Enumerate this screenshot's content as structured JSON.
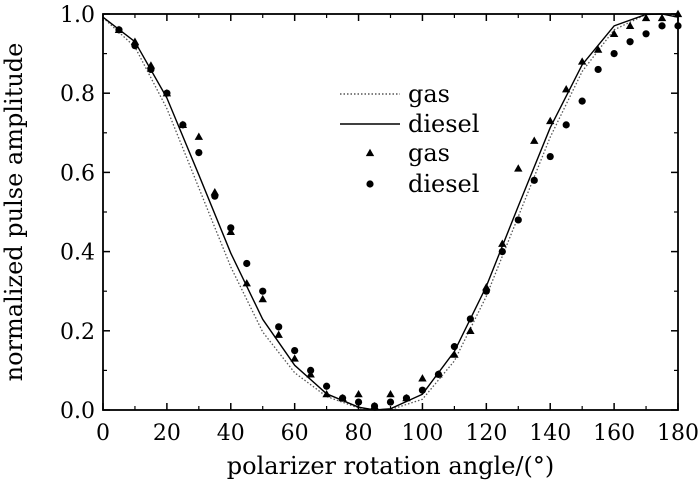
{
  "chart_data": {
    "type": "scatter",
    "title": "",
    "xlabel": "polarizer rotation angle/(°)",
    "ylabel": "normalized pulse amplitude",
    "xlim": [
      0,
      180
    ],
    "ylim": [
      0.0,
      1.0
    ],
    "x_ticks": [
      0,
      20,
      40,
      60,
      80,
      100,
      120,
      140,
      160,
      180
    ],
    "x_tick_labels": [
      "0",
      "20",
      "40",
      "60",
      "80",
      "100",
      "120",
      "140",
      "160",
      "180"
    ],
    "y_ticks": [
      0.0,
      0.2,
      0.4,
      0.6,
      0.8,
      1.0
    ],
    "y_tick_labels": [
      "0.0",
      "0.2",
      "0.4",
      "0.6",
      "0.8",
      "1.0"
    ],
    "grid": false,
    "legend_position": "upper-center",
    "series": [
      {
        "name": "gas",
        "kind": "line",
        "style": "dotted",
        "color": "#555555",
        "x": [
          0,
          10,
          20,
          30,
          40,
          50,
          60,
          70,
          80,
          87,
          90,
          100,
          110,
          120,
          130,
          140,
          150,
          160,
          170,
          177,
          180
        ],
        "y": [
          0.991,
          0.917,
          0.761,
          0.561,
          0.361,
          0.197,
          0.094,
          0.034,
          0.005,
          0.0,
          0.001,
          0.027,
          0.124,
          0.287,
          0.489,
          0.689,
          0.855,
          0.96,
          0.999,
          1.0,
          0.995
        ]
      },
      {
        "name": "diesel",
        "kind": "line",
        "style": "solid",
        "color": "#000000",
        "x": [
          0,
          10,
          20,
          30,
          40,
          50,
          60,
          70,
          80,
          85,
          90,
          100,
          110,
          120,
          130,
          140,
          150,
          160,
          170,
          175,
          180
        ],
        "y": [
          0.992,
          0.93,
          0.788,
          0.594,
          0.396,
          0.229,
          0.113,
          0.041,
          0.007,
          0.0,
          0.003,
          0.04,
          0.148,
          0.312,
          0.515,
          0.713,
          0.872,
          0.97,
          0.999,
          1.0,
          0.992
        ]
      },
      {
        "name": "gas",
        "kind": "scatter",
        "marker": "triangle",
        "color": "#000000",
        "x": [
          5,
          10,
          15,
          20,
          25,
          30,
          35,
          40,
          45,
          50,
          55,
          60,
          65,
          70,
          75,
          80,
          85,
          90,
          95,
          100,
          105,
          110,
          115,
          120,
          125,
          130,
          135,
          140,
          145,
          150,
          155,
          160,
          165,
          170,
          175,
          180
        ],
        "y": [
          0.96,
          0.93,
          0.87,
          0.8,
          0.72,
          0.69,
          0.55,
          0.45,
          0.32,
          0.28,
          0.19,
          0.13,
          0.09,
          0.04,
          0.03,
          0.04,
          0.01,
          0.04,
          0.03,
          0.08,
          0.09,
          0.14,
          0.2,
          0.31,
          0.42,
          0.61,
          0.68,
          0.73,
          0.81,
          0.88,
          0.91,
          0.95,
          0.97,
          0.99,
          0.99,
          1.0
        ]
      },
      {
        "name": "diesel",
        "kind": "scatter",
        "marker": "circle",
        "color": "#000000",
        "x": [
          5,
          10,
          15,
          20,
          25,
          30,
          35,
          40,
          45,
          50,
          55,
          60,
          65,
          70,
          75,
          80,
          85,
          90,
          95,
          100,
          105,
          110,
          115,
          120,
          125,
          130,
          135,
          140,
          145,
          150,
          155,
          160,
          165,
          170,
          175,
          180
        ],
        "y": [
          0.96,
          0.92,
          0.86,
          0.8,
          0.72,
          0.65,
          0.54,
          0.46,
          0.37,
          0.3,
          0.21,
          0.15,
          0.1,
          0.06,
          0.03,
          0.02,
          0.01,
          0.02,
          0.03,
          0.05,
          0.09,
          0.16,
          0.23,
          0.3,
          0.4,
          0.48,
          0.58,
          0.64,
          0.72,
          0.78,
          0.86,
          0.9,
          0.93,
          0.95,
          0.97,
          0.97
        ]
      }
    ]
  }
}
